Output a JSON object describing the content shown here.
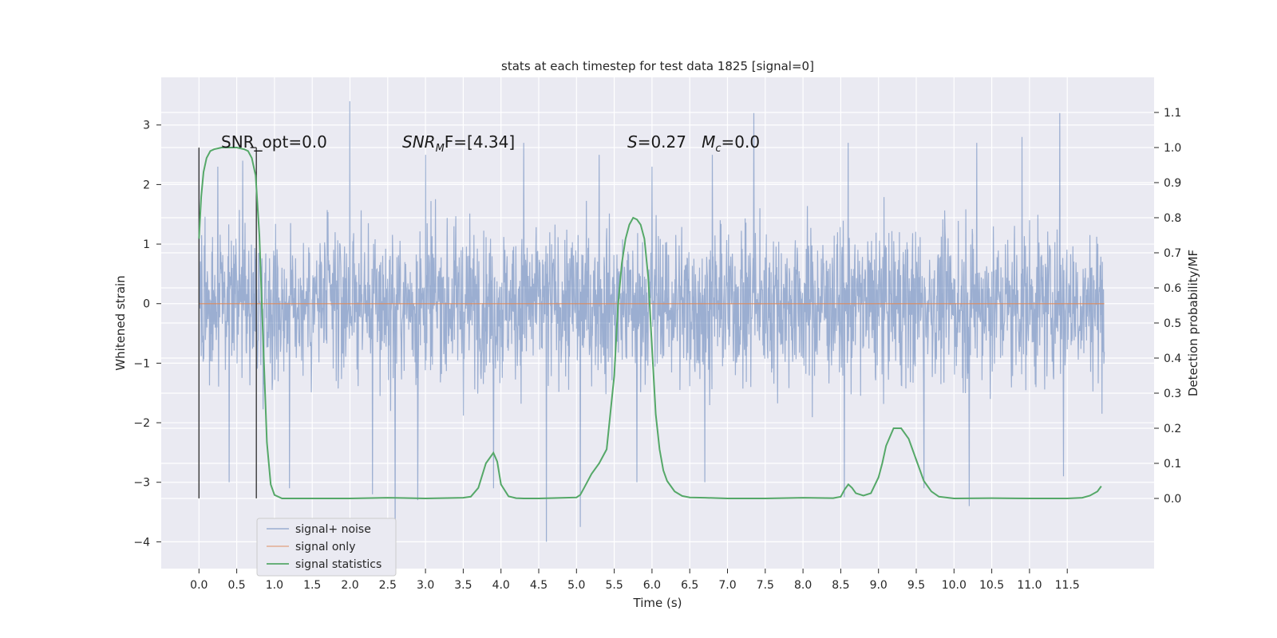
{
  "chart_data": {
    "type": "line",
    "title": "stats at each timestep for test data 1825 [signal=0]",
    "xlabel": "Time (s)",
    "ylabel": "Whitened strain",
    "ylabel_right": "Detection probability/MF",
    "xlim": [
      -0.5,
      12.65
    ],
    "ylim": [
      -4.45,
      3.8
    ],
    "ylim_right": [
      -0.2,
      1.2
    ],
    "x_ticks": [
      "0.0",
      "0.5",
      "1.0",
      "1.5",
      "2.0",
      "2.5",
      "3.0",
      "3.5",
      "4.0",
      "4.5",
      "5.0",
      "5.5",
      "6.0",
      "6.5",
      "7.0",
      "7.5",
      "8.0",
      "8.5",
      "9.0",
      "9.5",
      "10.0",
      "10.5",
      "11.0",
      "11.5"
    ],
    "y_ticks_left": [
      "3",
      "2",
      "1",
      "0",
      "−1",
      "−2",
      "−3",
      "−4"
    ],
    "y_ticks_right": [
      "1.1",
      "1.0",
      "0.9",
      "0.8",
      "0.7",
      "0.6",
      "0.5",
      "0.4",
      "0.3",
      "0.2",
      "0.1",
      "0.0"
    ],
    "grid": true,
    "legend_position": "lower-left",
    "annotations": {
      "snr_opt": "SNR_opt=0.0",
      "snr_mf_main": "SNR",
      "snr_mf_sub": "M",
      "snr_mf_tail": "F=[4.34]",
      "s_main": "S",
      "s_tail": "=0.27   ",
      "mc_main": "M",
      "mc_sub": "c",
      "mc_tail": "=0.0"
    },
    "vlines": [
      0.0,
      0.76
    ],
    "series": [
      {
        "name": "signal+ noise",
        "color": "#4c72b0",
        "style": "noise",
        "x_range": [
          0.0,
          11.99
        ],
        "band_typical": [
          -1.5,
          1.5
        ],
        "peaks_upper": [
          [
            0.0,
            2.6
          ],
          [
            0.25,
            2.3
          ],
          [
            0.58,
            2.4
          ],
          [
            2.0,
            3.4
          ],
          [
            3.0,
            2.5
          ],
          [
            4.3,
            2.7
          ],
          [
            5.3,
            2.5
          ],
          [
            6.0,
            2.3
          ],
          [
            6.8,
            2.5
          ],
          [
            7.35,
            3.2
          ],
          [
            8.6,
            2.7
          ],
          [
            9.6,
            2.6
          ],
          [
            10.3,
            2.7
          ],
          [
            10.9,
            2.8
          ],
          [
            11.4,
            3.2
          ]
        ],
        "peaks_lower": [
          [
            0.4,
            -3.0
          ],
          [
            1.2,
            -3.1
          ],
          [
            2.3,
            -3.2
          ],
          [
            2.6,
            -4.05
          ],
          [
            2.9,
            -3.3
          ],
          [
            3.9,
            -3.1
          ],
          [
            4.6,
            -4.0
          ],
          [
            5.05,
            -3.75
          ],
          [
            5.8,
            -3.0
          ],
          [
            6.7,
            -3.0
          ],
          [
            8.55,
            -3.25
          ],
          [
            9.6,
            -3.1
          ],
          [
            10.2,
            -3.4
          ],
          [
            11.45,
            -2.9
          ]
        ]
      },
      {
        "name": "signal only",
        "color": "#dd8452",
        "style": "line",
        "x": [
          0.0,
          11.99
        ],
        "y": [
          0.0,
          0.0
        ]
      },
      {
        "name": "signal statistics",
        "color": "#55a868",
        "style": "line",
        "axis": "right",
        "x": [
          0.0,
          0.03,
          0.06,
          0.1,
          0.15,
          0.2,
          0.3,
          0.4,
          0.5,
          0.6,
          0.65,
          0.7,
          0.75,
          0.8,
          0.85,
          0.9,
          0.95,
          1.0,
          1.1,
          1.5,
          2.0,
          2.5,
          3.0,
          3.5,
          3.6,
          3.7,
          3.8,
          3.9,
          3.95,
          4.0,
          4.1,
          4.2,
          4.3,
          4.5,
          5.0,
          5.05,
          5.1,
          5.2,
          5.3,
          5.4,
          5.5,
          5.55,
          5.6,
          5.65,
          5.7,
          5.75,
          5.8,
          5.85,
          5.9,
          5.95,
          6.0,
          6.05,
          6.1,
          6.15,
          6.2,
          6.3,
          6.4,
          6.5,
          6.7,
          7.0,
          7.5,
          8.0,
          8.4,
          8.5,
          8.55,
          8.6,
          8.65,
          8.7,
          8.8,
          8.9,
          9.0,
          9.05,
          9.1,
          9.2,
          9.3,
          9.4,
          9.5,
          9.6,
          9.7,
          9.8,
          10.0,
          10.5,
          11.0,
          11.5,
          11.7,
          11.8,
          11.9,
          11.95
        ],
        "y": [
          0.74,
          0.86,
          0.93,
          0.97,
          0.99,
          0.995,
          1.0,
          1.0,
          1.0,
          0.995,
          0.99,
          0.97,
          0.92,
          0.75,
          0.45,
          0.16,
          0.04,
          0.01,
          0.0,
          0.0,
          0.0,
          0.002,
          0.0,
          0.002,
          0.005,
          0.03,
          0.1,
          0.13,
          0.105,
          0.04,
          0.006,
          0.001,
          0.0,
          0.0,
          0.003,
          0.01,
          0.03,
          0.07,
          0.1,
          0.14,
          0.35,
          0.55,
          0.67,
          0.74,
          0.78,
          0.8,
          0.795,
          0.78,
          0.74,
          0.63,
          0.43,
          0.24,
          0.14,
          0.08,
          0.05,
          0.02,
          0.007,
          0.003,
          0.002,
          0.0,
          0.0,
          0.002,
          0.001,
          0.005,
          0.025,
          0.04,
          0.03,
          0.015,
          0.008,
          0.015,
          0.06,
          0.1,
          0.15,
          0.2,
          0.2,
          0.17,
          0.11,
          0.05,
          0.02,
          0.005,
          0.0,
          0.001,
          0.0,
          0.0,
          0.002,
          0.008,
          0.02,
          0.035
        ]
      }
    ]
  }
}
